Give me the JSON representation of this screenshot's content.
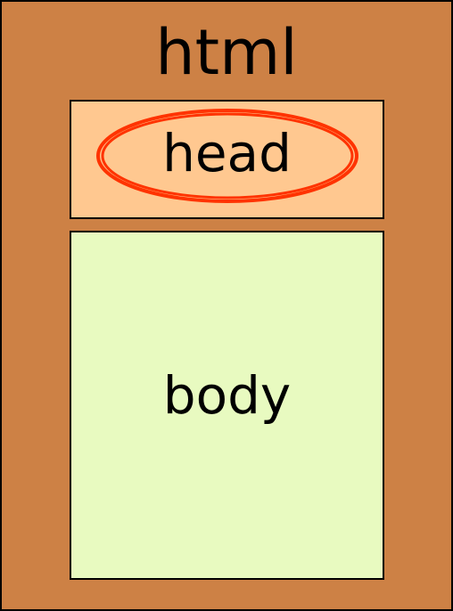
{
  "diagram": {
    "html_label": "html",
    "head_label": "head",
    "body_label": "body"
  },
  "colors": {
    "html_fill": "#CD8145",
    "head_fill": "#FFC890",
    "body_fill": "#E8FAC0",
    "highlight_ring": "#FF3300",
    "border": "#000000"
  }
}
